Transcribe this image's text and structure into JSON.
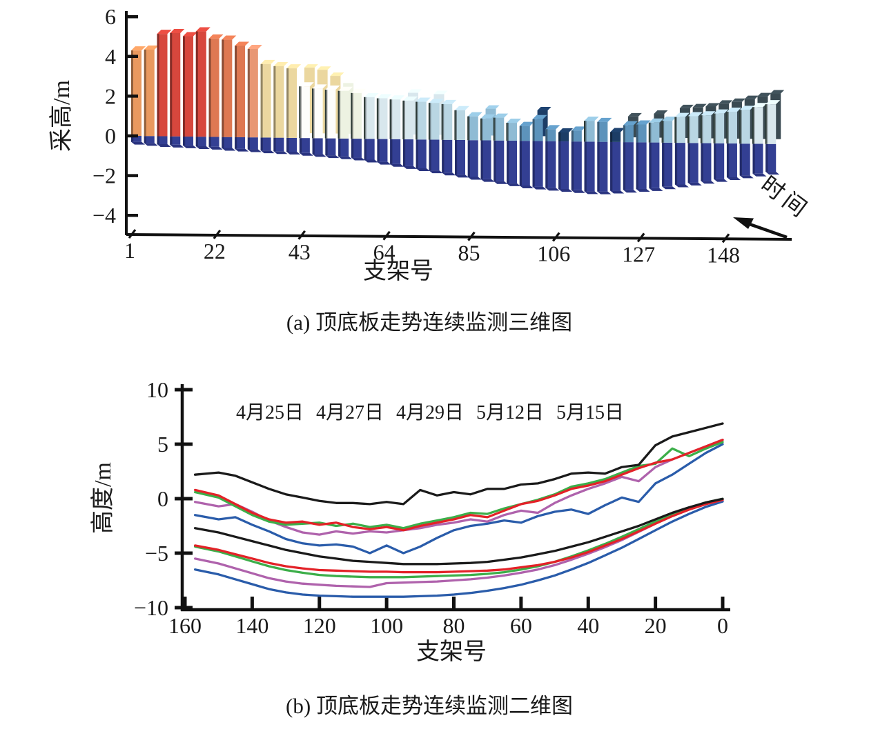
{
  "figure": {
    "caption_a": "(a) 顶底板走势连续监测三维图",
    "caption_b": "(b) 顶底板走势连续监测二维图"
  },
  "chart_data": [
    {
      "type": "bar",
      "subtype": "3d-bar-series",
      "title": "顶底板走势连续监测三维图",
      "xlabel": "支架号",
      "ylabel": "采高/m",
      "time_axis_label": "时间",
      "ylim": [
        -4,
        6
      ],
      "yticks": [
        6,
        4,
        2,
        0,
        -2,
        -4
      ],
      "xticks": [
        1,
        22,
        43,
        64,
        85,
        106,
        127,
        148
      ],
      "grid": false,
      "palette": [
        "#E9995F",
        "#D7473D",
        "#DE7852",
        "#E89774",
        "#EBD79F",
        "#FDFDFB",
        "#EDF2E2",
        "#D8E7ED",
        "#B9D6E3",
        "#8FBBD4",
        "#5D93BB",
        "#1C3D66",
        "#3A4A52"
      ],
      "negative_colors": {
        "front": "#333F93",
        "side": "#232C6B",
        "bottom": "#2A3480"
      },
      "bars_note": "each bar = [roof_height_m, floor_depth_m, color_index, back_bar_height_m, back_bar_color_index]",
      "bars": [
        [
          4.3,
          0.3,
          0,
          0,
          0
        ],
        [
          4.35,
          0.35,
          0,
          0,
          0
        ],
        [
          5.15,
          0.4,
          1,
          0,
          0
        ],
        [
          5.2,
          0.42,
          1,
          0,
          0
        ],
        [
          5.05,
          0.45,
          1,
          0,
          0
        ],
        [
          5.3,
          0.48,
          1,
          0,
          0
        ],
        [
          4.95,
          0.5,
          2,
          0,
          0
        ],
        [
          4.9,
          0.55,
          2,
          0,
          0
        ],
        [
          4.6,
          0.58,
          2,
          0,
          0
        ],
        [
          4.45,
          0.6,
          3,
          0,
          0
        ],
        [
          3.7,
          0.65,
          4,
          0,
          0
        ],
        [
          3.6,
          0.68,
          4,
          0,
          0
        ],
        [
          3.5,
          0.7,
          4,
          0,
          0
        ],
        [
          2.6,
          0.75,
          5,
          3.3,
          4
        ],
        [
          2.5,
          0.8,
          5,
          3.2,
          4
        ],
        [
          2.45,
          0.85,
          5,
          2.9,
          4
        ],
        [
          2.4,
          0.9,
          6,
          2.55,
          6
        ],
        [
          2.3,
          0.95,
          6,
          0,
          0
        ],
        [
          2.1,
          1.05,
          7,
          0,
          0
        ],
        [
          2.05,
          1.15,
          7,
          0,
          0
        ],
        [
          2.0,
          1.25,
          7,
          0,
          0
        ],
        [
          1.95,
          1.35,
          7,
          2.1,
          7
        ],
        [
          1.9,
          1.45,
          8,
          0,
          0
        ],
        [
          1.85,
          1.55,
          8,
          2.05,
          7
        ],
        [
          1.8,
          1.65,
          8,
          0,
          0
        ],
        [
          1.5,
          1.75,
          8,
          0,
          0
        ],
        [
          1.2,
          1.85,
          9,
          0,
          0
        ],
        [
          1.1,
          1.95,
          9,
          1.35,
          9
        ],
        [
          1.15,
          2.05,
          9,
          0,
          0
        ],
        [
          0.9,
          2.15,
          9,
          0,
          0
        ],
        [
          0.75,
          2.25,
          10,
          0,
          0
        ],
        [
          1.1,
          2.3,
          10,
          1.3,
          11
        ],
        [
          0.6,
          2.35,
          10,
          0,
          0
        ],
        [
          0.45,
          2.4,
          11,
          0,
          0
        ],
        [
          0.55,
          2.45,
          10,
          0,
          0
        ],
        [
          1.05,
          2.5,
          9,
          0,
          0
        ],
        [
          1.0,
          2.5,
          10,
          0,
          0
        ],
        [
          0.5,
          2.45,
          11,
          0,
          0
        ],
        [
          0.85,
          2.4,
          10,
          1.05,
          12
        ],
        [
          0.9,
          2.35,
          10,
          0,
          0
        ],
        [
          1.0,
          2.3,
          9,
          1.2,
          12
        ],
        [
          1.1,
          2.2,
          9,
          0,
          0
        ],
        [
          1.3,
          2.1,
          8,
          1.5,
          12
        ],
        [
          1.35,
          2.0,
          8,
          1.55,
          12
        ],
        [
          1.4,
          1.9,
          8,
          1.6,
          12
        ],
        [
          1.5,
          1.8,
          8,
          1.75,
          12
        ],
        [
          1.6,
          1.7,
          8,
          1.85,
          12
        ],
        [
          1.7,
          1.6,
          8,
          2.0,
          12
        ],
        [
          1.85,
          1.5,
          7,
          2.15,
          12
        ],
        [
          2.0,
          1.4,
          7,
          2.3,
          12
        ]
      ]
    },
    {
      "type": "line",
      "title": "顶底板走势连续监测二维图",
      "xlabel": "支架号",
      "ylabel": "高度/m",
      "ylim": [
        -10,
        10
      ],
      "yticks": [
        10,
        5,
        0,
        -5,
        -10
      ],
      "xticks": [
        160,
        140,
        120,
        100,
        80,
        60,
        40,
        20,
        0
      ],
      "x_axis_reversed": true,
      "grid": false,
      "legend_position": "top-inside",
      "legend": [
        {
          "label": "4月25日",
          "color": "#3CAE49"
        },
        {
          "label": "4月27日",
          "color": "#2A5CAA"
        },
        {
          "label": "4月29日",
          "color": "#AF62AC"
        },
        {
          "label": "5月12日",
          "color": "#1A1A1A"
        },
        {
          "label": "5月15日",
          "color": "#E32228"
        }
      ],
      "x": [
        157,
        150,
        145,
        140,
        135,
        130,
        125,
        120,
        115,
        110,
        105,
        100,
        95,
        90,
        85,
        80,
        75,
        70,
        65,
        60,
        55,
        50,
        45,
        40,
        35,
        30,
        25,
        20,
        15,
        10,
        5,
        0
      ],
      "series": [
        {
          "name": "4月27日-顶板",
          "color": "#2A5CAA",
          "values": [
            -1.5,
            -1.9,
            -1.7,
            -2.4,
            -3.0,
            -3.7,
            -4.1,
            -4.3,
            -4.2,
            -4.4,
            -5.0,
            -4.3,
            -5.0,
            -4.4,
            -3.6,
            -2.9,
            -2.5,
            -2.3,
            -2.0,
            -2.2,
            -1.6,
            -1.2,
            -1.0,
            -1.4,
            -0.6,
            0.1,
            -0.3,
            1.4,
            2.2,
            3.2,
            4.2,
            5.0
          ]
        },
        {
          "name": "4月29日-顶板",
          "color": "#AF62AC",
          "values": [
            -0.3,
            -0.7,
            -0.5,
            -1.2,
            -2.0,
            -2.6,
            -3.1,
            -3.3,
            -3.0,
            -3.2,
            -3.0,
            -3.1,
            -2.9,
            -2.7,
            -2.4,
            -2.2,
            -1.9,
            -2.1,
            -1.5,
            -1.1,
            -1.3,
            -0.4,
            0.3,
            0.9,
            1.4,
            2.0,
            1.6,
            2.9,
            3.6,
            4.2,
            4.8,
            5.4
          ]
        },
        {
          "name": "4月25日-顶板",
          "color": "#3CAE49",
          "values": [
            0.6,
            0.1,
            -0.7,
            -1.5,
            -2.1,
            -2.4,
            -2.3,
            -2.2,
            -2.5,
            -2.3,
            -2.6,
            -2.4,
            -2.7,
            -2.3,
            -2.0,
            -1.7,
            -1.3,
            -1.4,
            -0.9,
            -0.5,
            -0.1,
            0.4,
            1.1,
            1.4,
            1.8,
            2.4,
            3.0,
            3.2,
            4.6,
            3.9,
            4.6,
            5.2
          ]
        },
        {
          "name": "5月15日-顶板",
          "color": "#E32228",
          "values": [
            0.8,
            0.3,
            -0.5,
            -1.3,
            -1.9,
            -2.2,
            -2.1,
            -2.4,
            -2.2,
            -2.6,
            -2.8,
            -2.6,
            -2.9,
            -2.5,
            -2.2,
            -1.9,
            -1.5,
            -1.7,
            -1.1,
            -0.5,
            -0.2,
            0.3,
            0.9,
            1.2,
            1.6,
            2.2,
            2.8,
            3.3,
            3.6,
            4.2,
            4.8,
            5.4
          ]
        },
        {
          "name": "5月12日-顶板",
          "color": "#1A1A1A",
          "values": [
            2.2,
            2.4,
            2.1,
            1.5,
            0.9,
            0.4,
            0.1,
            -0.2,
            -0.4,
            -0.4,
            -0.5,
            -0.3,
            -0.5,
            0.8,
            0.3,
            0.6,
            0.4,
            0.9,
            0.9,
            1.3,
            1.4,
            1.8,
            2.3,
            2.4,
            2.3,
            2.9,
            3.1,
            4.9,
            5.7,
            6.1,
            6.5,
            6.9
          ]
        },
        {
          "name": "4月27日-底板",
          "color": "#2A5CAA",
          "values": [
            -6.5,
            -6.95,
            -7.4,
            -7.85,
            -8.3,
            -8.6,
            -8.8,
            -8.9,
            -8.95,
            -9.0,
            -9.0,
            -9.0,
            -9.0,
            -8.95,
            -8.9,
            -8.8,
            -8.65,
            -8.45,
            -8.2,
            -7.9,
            -7.5,
            -7.05,
            -6.5,
            -5.9,
            -5.2,
            -4.5,
            -3.7,
            -2.9,
            -2.1,
            -1.4,
            -0.75,
            -0.25
          ]
        },
        {
          "name": "4月29日-底板",
          "color": "#AF62AC",
          "values": [
            -5.5,
            -5.95,
            -6.4,
            -6.85,
            -7.3,
            -7.6,
            -7.8,
            -7.9,
            -8.0,
            -8.05,
            -8.1,
            -7.75,
            -7.7,
            -7.65,
            -7.6,
            -7.5,
            -7.4,
            -7.25,
            -7.05,
            -6.8,
            -6.5,
            -6.1,
            -5.6,
            -5.05,
            -4.45,
            -3.8,
            -3.05,
            -2.3,
            -1.6,
            -1.0,
            -0.5,
            -0.12
          ]
        },
        {
          "name": "4月25日-底板",
          "color": "#3CAE49",
          "values": [
            -4.4,
            -4.85,
            -5.3,
            -5.75,
            -6.2,
            -6.55,
            -6.8,
            -7.0,
            -7.1,
            -7.15,
            -7.2,
            -7.2,
            -7.2,
            -7.15,
            -7.1,
            -7.05,
            -7.0,
            -6.9,
            -6.75,
            -6.5,
            -6.2,
            -5.8,
            -5.3,
            -4.75,
            -4.15,
            -3.5,
            -2.8,
            -2.1,
            -1.45,
            -0.85,
            -0.35,
            -0.02
          ]
        },
        {
          "name": "5月15日-底板",
          "color": "#E32228",
          "values": [
            -4.3,
            -4.7,
            -5.1,
            -5.5,
            -5.9,
            -6.2,
            -6.4,
            -6.55,
            -6.6,
            -6.65,
            -6.7,
            -6.7,
            -6.75,
            -6.75,
            -6.75,
            -6.7,
            -6.65,
            -6.6,
            -6.5,
            -6.3,
            -6.1,
            -5.8,
            -5.4,
            -4.9,
            -4.3,
            -3.7,
            -3.0,
            -2.3,
            -1.6,
            -1.0,
            -0.5,
            -0.1
          ]
        },
        {
          "name": "5月12日-底板",
          "color": "#1A1A1A",
          "values": [
            -2.7,
            -3.1,
            -3.5,
            -3.9,
            -4.3,
            -4.7,
            -5.0,
            -5.3,
            -5.5,
            -5.7,
            -5.8,
            -5.9,
            -6.0,
            -6.0,
            -6.0,
            -5.95,
            -5.9,
            -5.8,
            -5.6,
            -5.4,
            -5.1,
            -4.8,
            -4.4,
            -4.0,
            -3.5,
            -3.0,
            -2.5,
            -1.9,
            -1.3,
            -0.8,
            -0.35,
            -0.02
          ]
        }
      ]
    }
  ]
}
